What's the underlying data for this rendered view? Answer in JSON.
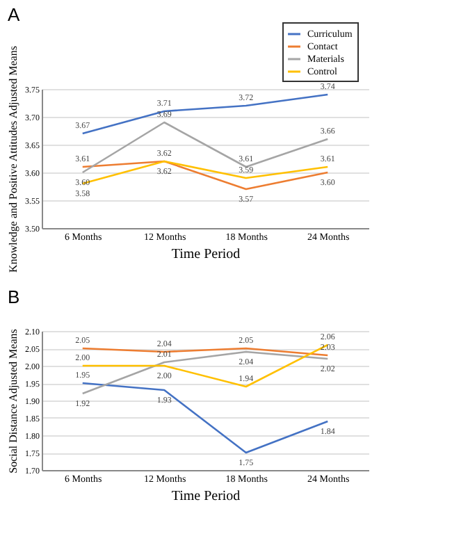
{
  "chart_data": [
    {
      "type": "line",
      "title": "A",
      "xlabel": "Time Period",
      "ylabel": "Knowledge and Positive Attitudes Adjusted Means",
      "categories": [
        "6 Months",
        "12 Months",
        "18 Months",
        "24 Months"
      ],
      "ylim": [
        3.5,
        3.75
      ],
      "yticks": [
        {
          "value": 3.5,
          "label": "3.50"
        },
        3.55,
        {
          "value": 3.6,
          "label": "3.60"
        },
        3.65,
        {
          "value": 3.7,
          "label": "3.70"
        },
        3.75
      ],
      "grid": "y",
      "legend": "top right",
      "marker": "none",
      "series": [
        {
          "name": "Curriculum",
          "color": "#4472c4",
          "values": [
            3.67,
            3.71,
            3.72,
            3.74
          ],
          "value_labels": [
            "3.67",
            "3.71",
            "3.72",
            "3.74"
          ]
        },
        {
          "name": "Contact",
          "color": "#ed7d31",
          "values": [
            3.61,
            3.62,
            3.57,
            3.6
          ],
          "value_labels": [
            "3.61",
            "3.62",
            "3.57",
            "3.60"
          ]
        },
        {
          "name": "Materials",
          "color": "#a5a5a5",
          "values": [
            3.6,
            3.69,
            3.61,
            3.66
          ],
          "value_labels": [
            "3.60",
            "3.69",
            "3.61",
            "3.66"
          ]
        },
        {
          "name": "Control",
          "color": "#ffc000",
          "values": [
            3.58,
            3.62,
            3.59,
            3.61
          ],
          "value_labels": [
            "3.58",
            "3.62",
            "3.59",
            "3.61"
          ]
        }
      ]
    },
    {
      "type": "line",
      "title": "B",
      "xlabel": "Time Period",
      "ylabel": "Social Distance Adjusted Means",
      "categories": [
        "6 Months",
        "12 Months",
        "18 Months",
        "24 Months"
      ],
      "ylim": [
        1.7,
        2.1
      ],
      "yticks": [
        {
          "value": 1.7,
          "label": "1.70"
        },
        1.75,
        {
          "value": 1.8,
          "label": "1.80"
        },
        1.85,
        {
          "value": 1.9,
          "label": "1.90"
        },
        1.95,
        {
          "value": 2.0,
          "label": "2.00"
        },
        2.05,
        {
          "value": 2.1,
          "label": "2.10"
        }
      ],
      "grid": "y",
      "legend": "top right",
      "marker": "none",
      "series": [
        {
          "name": "Curriculum",
          "color": "#4472c4",
          "values": [
            1.95,
            1.93,
            1.75,
            1.84
          ],
          "value_labels": [
            "1.95",
            "1.93",
            "1.75",
            "1.84"
          ]
        },
        {
          "name": "Contact",
          "color": "#ed7d31",
          "values": [
            2.05,
            2.04,
            2.05,
            2.03
          ],
          "value_labels": [
            "2.05",
            "2.04",
            "2.05",
            "2.03"
          ]
        },
        {
          "name": "Materials",
          "color": "#a5a5a5",
          "values": [
            1.92,
            2.01,
            2.04,
            2.02
          ],
          "value_labels": [
            "1.92",
            "2.01",
            "2.04",
            "2.02"
          ]
        },
        {
          "name": "Control",
          "color": "#ffc000",
          "values": [
            2.0,
            2.0,
            1.94,
            2.06
          ],
          "value_labels": [
            "2.00",
            "2.00",
            "1.94",
            "2.06"
          ]
        }
      ]
    }
  ]
}
